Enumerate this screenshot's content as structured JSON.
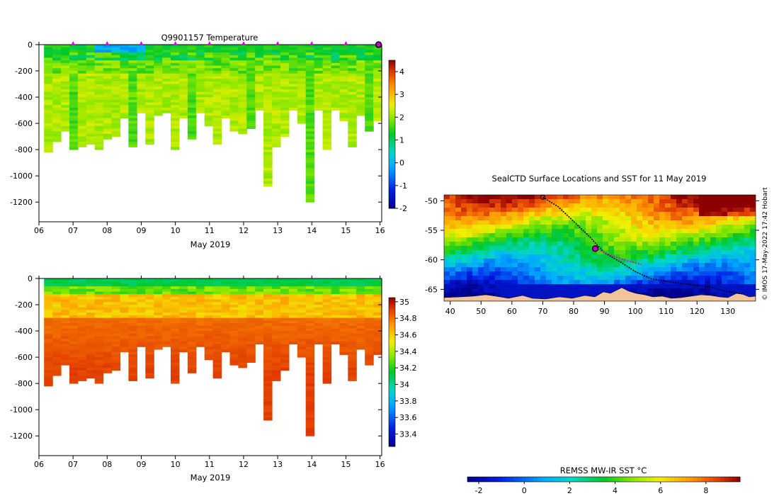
{
  "chart_data": [
    {
      "id": "temperature",
      "type": "heatmap",
      "title": "Q9901157  Temperature",
      "xlabel": "May 2019",
      "ylabel": "",
      "x_tick_labels": [
        "06",
        "07",
        "08",
        "09",
        "10",
        "11",
        "12",
        "13",
        "14",
        "15",
        "16"
      ],
      "x_tick_values": [
        6,
        7,
        8,
        9,
        10,
        11,
        12,
        13,
        14,
        15,
        16
      ],
      "xlim": [
        6,
        16.05
      ],
      "y_tick_values": [
        0,
        -200,
        -400,
        -600,
        -800,
        -1000,
        -1200
      ],
      "ylim": [
        -1350,
        0
      ],
      "colorbar": {
        "ticks": [
          4,
          3,
          2,
          1,
          0,
          -1,
          -2
        ],
        "range": [
          -2,
          4.5
        ]
      },
      "marker_days": [
        7,
        8,
        9,
        10,
        11,
        12,
        13,
        14,
        15
      ],
      "surface_marker_day": 16
    },
    {
      "id": "salinity",
      "type": "heatmap",
      "title": "",
      "xlabel": "May 2019",
      "ylabel": "",
      "x_tick_labels": [
        "06",
        "07",
        "08",
        "09",
        "10",
        "11",
        "12",
        "13",
        "14",
        "15",
        "16"
      ],
      "x_tick_values": [
        6,
        7,
        8,
        9,
        10,
        11,
        12,
        13,
        14,
        15,
        16
      ],
      "xlim": [
        6,
        16.05
      ],
      "y_tick_values": [
        0,
        -200,
        -400,
        -600,
        -800,
        -1000,
        -1200
      ],
      "ylim": [
        -1350,
        0
      ],
      "colorbar": {
        "ticks": [
          35,
          34.8,
          34.6,
          34.4,
          34.2,
          34,
          33.8,
          33.6,
          33.4
        ],
        "range": [
          33.25,
          35.05
        ]
      }
    },
    {
      "id": "sst_map",
      "type": "heatmap",
      "title": "SealCTD Surface Locations and SST for 11 May 2019",
      "xlabel": "",
      "ylabel": "",
      "x_tick_values": [
        40,
        50,
        60,
        70,
        80,
        90,
        100,
        110,
        120,
        130
      ],
      "xlim": [
        38,
        139
      ],
      "y_tick_values": [
        -50,
        -55,
        -60,
        -65
      ],
      "ylim": [
        -67,
        -49
      ],
      "colorbar": {
        "label": "REMSS MW-IR SST °C",
        "ticks": [
          -2,
          0,
          2,
          4,
          6,
          8
        ],
        "range": [
          -2.5,
          9.5
        ]
      },
      "credit": "© IMOS 17-May-2022 17:42 Hobart",
      "current_position": {
        "lon": 87,
        "lat": -58.1
      },
      "track_start": {
        "lon": 70,
        "lat": -49.4
      },
      "track": [
        [
          70,
          -49.4
        ],
        [
          75,
          -51
        ],
        [
          80,
          -53.5
        ],
        [
          85,
          -56
        ],
        [
          90,
          -58.8
        ],
        [
          95,
          -60.3
        ],
        [
          100,
          -62
        ],
        [
          105,
          -63.2
        ],
        [
          112,
          -63.8
        ],
        [
          118,
          -64.2
        ],
        [
          124,
          -64.6
        ],
        [
          130,
          -65.4
        ],
        [
          135,
          -65.8
        ]
      ]
    }
  ]
}
